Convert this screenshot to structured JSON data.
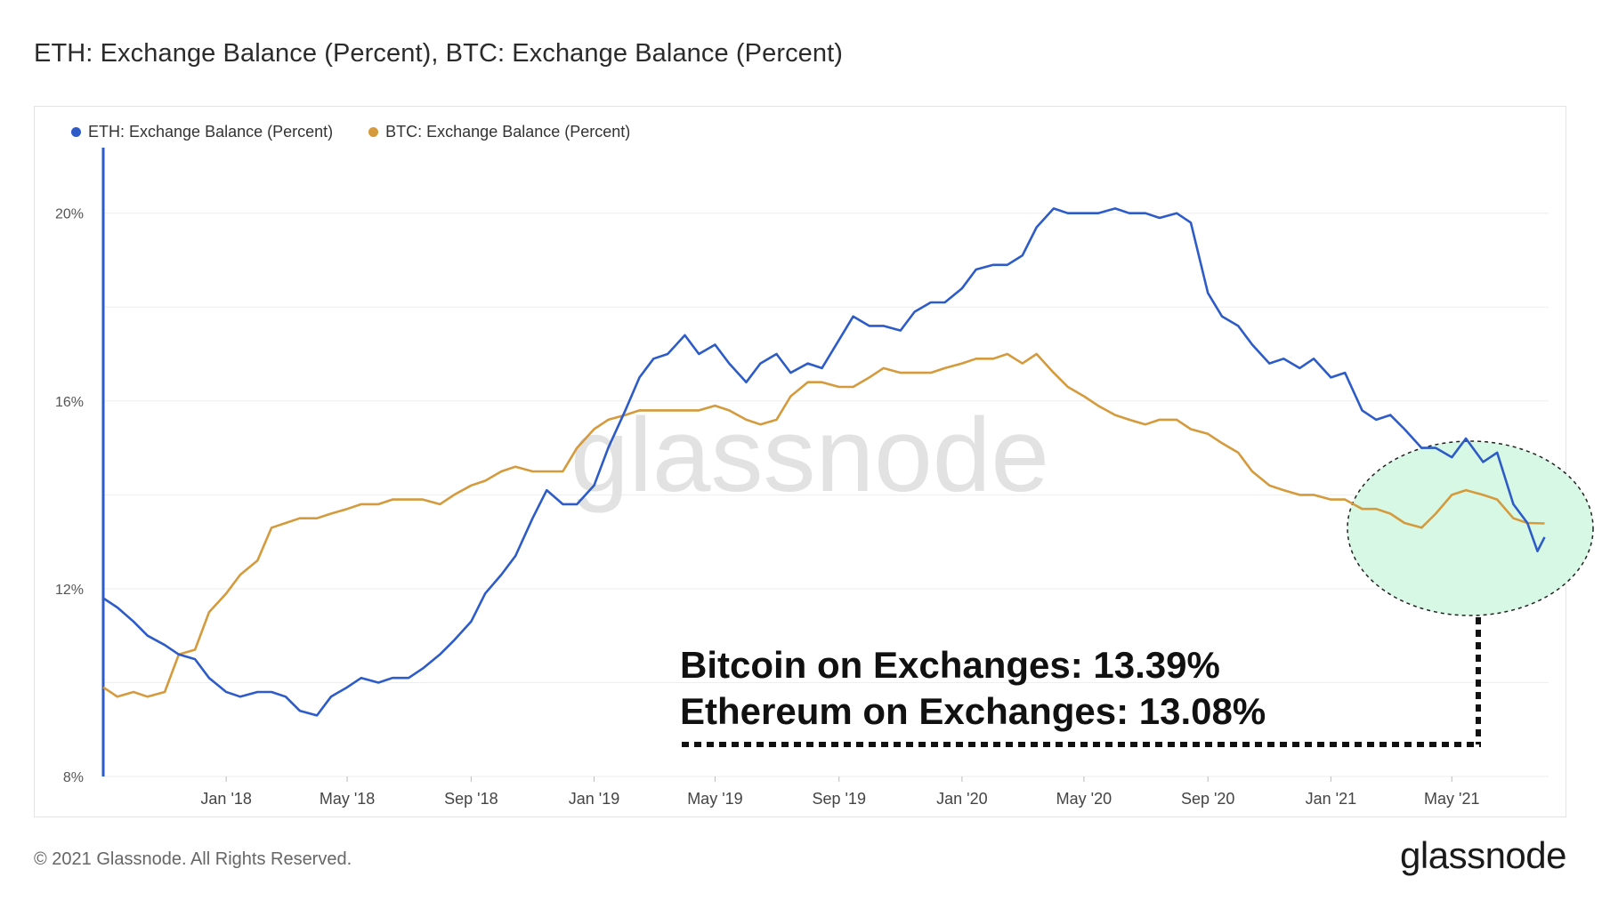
{
  "title": "ETH: Exchange Balance (Percent), BTC: Exchange Balance (Percent)",
  "footer": {
    "copyright": "© 2021 Glassnode. All Rights Reserved.",
    "logo": "glassnode",
    "watermark": "glassnode"
  },
  "annotation": {
    "line1": "Bitcoin on Exchanges: 13.39%",
    "line2": "Ethereum on Exchanges: 13.08%"
  },
  "colors": {
    "eth": "#2d5bc7",
    "btc": "#d49a3c",
    "highlight_fill": "#d8f8e6"
  },
  "chart_data": {
    "type": "line",
    "title": "ETH: Exchange Balance (Percent), BTC: Exchange Balance (Percent)",
    "x_tick_labels": [
      "Jan '18",
      "May '18",
      "Sep '18",
      "Jan '19",
      "May '19",
      "Sep '19",
      "Jan '20",
      "May '20",
      "Sep '20",
      "Jan '21",
      "May '21"
    ],
    "y_tick_labels": [
      "8%",
      "12%",
      "16%",
      "20%"
    ],
    "y_ticks": [
      8,
      12,
      16,
      20
    ],
    "ylim": [
      8,
      21.7
    ],
    "xlim": [
      "2017-09-01",
      "2021-08-05"
    ],
    "legend_position": "top-left",
    "grid": true,
    "series": [
      {
        "name": "ETH: Exchange Balance (Percent)",
        "color": "#2d5bc7",
        "points": [
          [
            "2017-09-01",
            11.8
          ],
          [
            "2017-09-15",
            11.6
          ],
          [
            "2017-10-01",
            11.3
          ],
          [
            "2017-10-15",
            11.0
          ],
          [
            "2017-11-01",
            10.8
          ],
          [
            "2017-11-15",
            10.6
          ],
          [
            "2017-12-01",
            10.5
          ],
          [
            "2017-12-15",
            10.1
          ],
          [
            "2018-01-01",
            9.8
          ],
          [
            "2018-01-15",
            9.7
          ],
          [
            "2018-02-01",
            9.8
          ],
          [
            "2018-02-15",
            9.8
          ],
          [
            "2018-03-01",
            9.7
          ],
          [
            "2018-03-15",
            9.4
          ],
          [
            "2018-04-01",
            9.3
          ],
          [
            "2018-04-15",
            9.7
          ],
          [
            "2018-05-01",
            9.9
          ],
          [
            "2018-05-15",
            10.1
          ],
          [
            "2018-06-01",
            10.0
          ],
          [
            "2018-06-15",
            10.1
          ],
          [
            "2018-07-01",
            10.1
          ],
          [
            "2018-07-15",
            10.3
          ],
          [
            "2018-08-01",
            10.6
          ],
          [
            "2018-08-15",
            10.9
          ],
          [
            "2018-09-01",
            11.3
          ],
          [
            "2018-09-15",
            11.9
          ],
          [
            "2018-10-01",
            12.3
          ],
          [
            "2018-10-15",
            12.7
          ],
          [
            "2018-11-01",
            13.5
          ],
          [
            "2018-11-15",
            14.1
          ],
          [
            "2018-12-01",
            13.8
          ],
          [
            "2018-12-15",
            13.8
          ],
          [
            "2019-01-01",
            14.2
          ],
          [
            "2019-01-15",
            15.0
          ],
          [
            "2019-02-01",
            15.8
          ],
          [
            "2019-02-15",
            16.5
          ],
          [
            "2019-03-01",
            16.9
          ],
          [
            "2019-03-15",
            17.0
          ],
          [
            "2019-04-01",
            17.4
          ],
          [
            "2019-04-15",
            17.0
          ],
          [
            "2019-05-01",
            17.2
          ],
          [
            "2019-05-15",
            16.8
          ],
          [
            "2019-06-01",
            16.4
          ],
          [
            "2019-06-15",
            16.8
          ],
          [
            "2019-07-01",
            17.0
          ],
          [
            "2019-07-15",
            16.6
          ],
          [
            "2019-08-01",
            16.8
          ],
          [
            "2019-08-15",
            16.7
          ],
          [
            "2019-09-01",
            17.3
          ],
          [
            "2019-09-15",
            17.8
          ],
          [
            "2019-10-01",
            17.6
          ],
          [
            "2019-10-15",
            17.6
          ],
          [
            "2019-11-01",
            17.5
          ],
          [
            "2019-11-15",
            17.9
          ],
          [
            "2019-12-01",
            18.1
          ],
          [
            "2019-12-15",
            18.1
          ],
          [
            "2020-01-01",
            18.4
          ],
          [
            "2020-01-15",
            18.8
          ],
          [
            "2020-02-01",
            18.9
          ],
          [
            "2020-02-15",
            18.9
          ],
          [
            "2020-03-01",
            19.1
          ],
          [
            "2020-03-15",
            19.7
          ],
          [
            "2020-04-01",
            20.1
          ],
          [
            "2020-04-15",
            20.0
          ],
          [
            "2020-05-01",
            20.0
          ],
          [
            "2020-05-15",
            20.0
          ],
          [
            "2020-06-01",
            20.1
          ],
          [
            "2020-06-15",
            20.0
          ],
          [
            "2020-07-01",
            20.0
          ],
          [
            "2020-07-15",
            19.9
          ],
          [
            "2020-08-01",
            20.0
          ],
          [
            "2020-08-15",
            19.8
          ],
          [
            "2020-09-01",
            18.3
          ],
          [
            "2020-09-15",
            17.8
          ],
          [
            "2020-10-01",
            17.6
          ],
          [
            "2020-10-15",
            17.2
          ],
          [
            "2020-11-01",
            16.8
          ],
          [
            "2020-11-15",
            16.9
          ],
          [
            "2020-12-01",
            16.7
          ],
          [
            "2020-12-15",
            16.9
          ],
          [
            "2021-01-01",
            16.5
          ],
          [
            "2021-01-15",
            16.6
          ],
          [
            "2021-02-01",
            15.8
          ],
          [
            "2021-02-15",
            15.6
          ],
          [
            "2021-03-01",
            15.7
          ],
          [
            "2021-03-15",
            15.4
          ],
          [
            "2021-04-01",
            15.0
          ],
          [
            "2021-04-15",
            15.0
          ],
          [
            "2021-05-01",
            14.8
          ],
          [
            "2021-05-15",
            15.2
          ],
          [
            "2021-06-01",
            14.7
          ],
          [
            "2021-06-15",
            14.9
          ],
          [
            "2021-07-01",
            13.8
          ],
          [
            "2021-07-15",
            13.4
          ],
          [
            "2021-07-25",
            12.8
          ],
          [
            "2021-08-01",
            13.1
          ]
        ]
      },
      {
        "name": "BTC: Exchange Balance (Percent)",
        "color": "#d49a3c",
        "points": [
          [
            "2017-09-01",
            9.9
          ],
          [
            "2017-09-15",
            9.7
          ],
          [
            "2017-10-01",
            9.8
          ],
          [
            "2017-10-15",
            9.7
          ],
          [
            "2017-11-01",
            9.8
          ],
          [
            "2017-11-15",
            10.6
          ],
          [
            "2017-12-01",
            10.7
          ],
          [
            "2017-12-15",
            11.5
          ],
          [
            "2018-01-01",
            11.9
          ],
          [
            "2018-01-15",
            12.3
          ],
          [
            "2018-02-01",
            12.6
          ],
          [
            "2018-02-15",
            13.3
          ],
          [
            "2018-03-01",
            13.4
          ],
          [
            "2018-03-15",
            13.5
          ],
          [
            "2018-04-01",
            13.5
          ],
          [
            "2018-04-15",
            13.6
          ],
          [
            "2018-05-01",
            13.7
          ],
          [
            "2018-05-15",
            13.8
          ],
          [
            "2018-06-01",
            13.8
          ],
          [
            "2018-06-15",
            13.9
          ],
          [
            "2018-07-01",
            13.9
          ],
          [
            "2018-07-15",
            13.9
          ],
          [
            "2018-08-01",
            13.8
          ],
          [
            "2018-08-15",
            14.0
          ],
          [
            "2018-09-01",
            14.2
          ],
          [
            "2018-09-15",
            14.3
          ],
          [
            "2018-10-01",
            14.5
          ],
          [
            "2018-10-15",
            14.6
          ],
          [
            "2018-11-01",
            14.5
          ],
          [
            "2018-11-15",
            14.5
          ],
          [
            "2018-12-01",
            14.5
          ],
          [
            "2018-12-15",
            15.0
          ],
          [
            "2019-01-01",
            15.4
          ],
          [
            "2019-01-15",
            15.6
          ],
          [
            "2019-02-01",
            15.7
          ],
          [
            "2019-02-15",
            15.8
          ],
          [
            "2019-03-01",
            15.8
          ],
          [
            "2019-03-15",
            15.8
          ],
          [
            "2019-04-01",
            15.8
          ],
          [
            "2019-04-15",
            15.8
          ],
          [
            "2019-05-01",
            15.9
          ],
          [
            "2019-05-15",
            15.8
          ],
          [
            "2019-06-01",
            15.6
          ],
          [
            "2019-06-15",
            15.5
          ],
          [
            "2019-07-01",
            15.6
          ],
          [
            "2019-07-15",
            16.1
          ],
          [
            "2019-08-01",
            16.4
          ],
          [
            "2019-08-15",
            16.4
          ],
          [
            "2019-09-01",
            16.3
          ],
          [
            "2019-09-15",
            16.3
          ],
          [
            "2019-10-01",
            16.5
          ],
          [
            "2019-10-15",
            16.7
          ],
          [
            "2019-11-01",
            16.6
          ],
          [
            "2019-11-15",
            16.6
          ],
          [
            "2019-12-01",
            16.6
          ],
          [
            "2019-12-15",
            16.7
          ],
          [
            "2020-01-01",
            16.8
          ],
          [
            "2020-01-15",
            16.9
          ],
          [
            "2020-02-01",
            16.9
          ],
          [
            "2020-02-15",
            17.0
          ],
          [
            "2020-03-01",
            16.8
          ],
          [
            "2020-03-15",
            17.0
          ],
          [
            "2020-04-01",
            16.6
          ],
          [
            "2020-04-15",
            16.3
          ],
          [
            "2020-05-01",
            16.1
          ],
          [
            "2020-05-15",
            15.9
          ],
          [
            "2020-06-01",
            15.7
          ],
          [
            "2020-06-15",
            15.6
          ],
          [
            "2020-07-01",
            15.5
          ],
          [
            "2020-07-15",
            15.6
          ],
          [
            "2020-08-01",
            15.6
          ],
          [
            "2020-08-15",
            15.4
          ],
          [
            "2020-09-01",
            15.3
          ],
          [
            "2020-09-15",
            15.1
          ],
          [
            "2020-10-01",
            14.9
          ],
          [
            "2020-10-15",
            14.5
          ],
          [
            "2020-11-01",
            14.2
          ],
          [
            "2020-11-15",
            14.1
          ],
          [
            "2020-12-01",
            14.0
          ],
          [
            "2020-12-15",
            14.0
          ],
          [
            "2021-01-01",
            13.9
          ],
          [
            "2021-01-15",
            13.9
          ],
          [
            "2021-02-01",
            13.7
          ],
          [
            "2021-02-15",
            13.7
          ],
          [
            "2021-03-01",
            13.6
          ],
          [
            "2021-03-15",
            13.4
          ],
          [
            "2021-04-01",
            13.3
          ],
          [
            "2021-04-15",
            13.6
          ],
          [
            "2021-05-01",
            14.0
          ],
          [
            "2021-05-15",
            14.1
          ],
          [
            "2021-06-01",
            14.0
          ],
          [
            "2021-06-15",
            13.9
          ],
          [
            "2021-07-01",
            13.5
          ],
          [
            "2021-07-15",
            13.4
          ],
          [
            "2021-08-01",
            13.39
          ]
        ]
      }
    ]
  }
}
